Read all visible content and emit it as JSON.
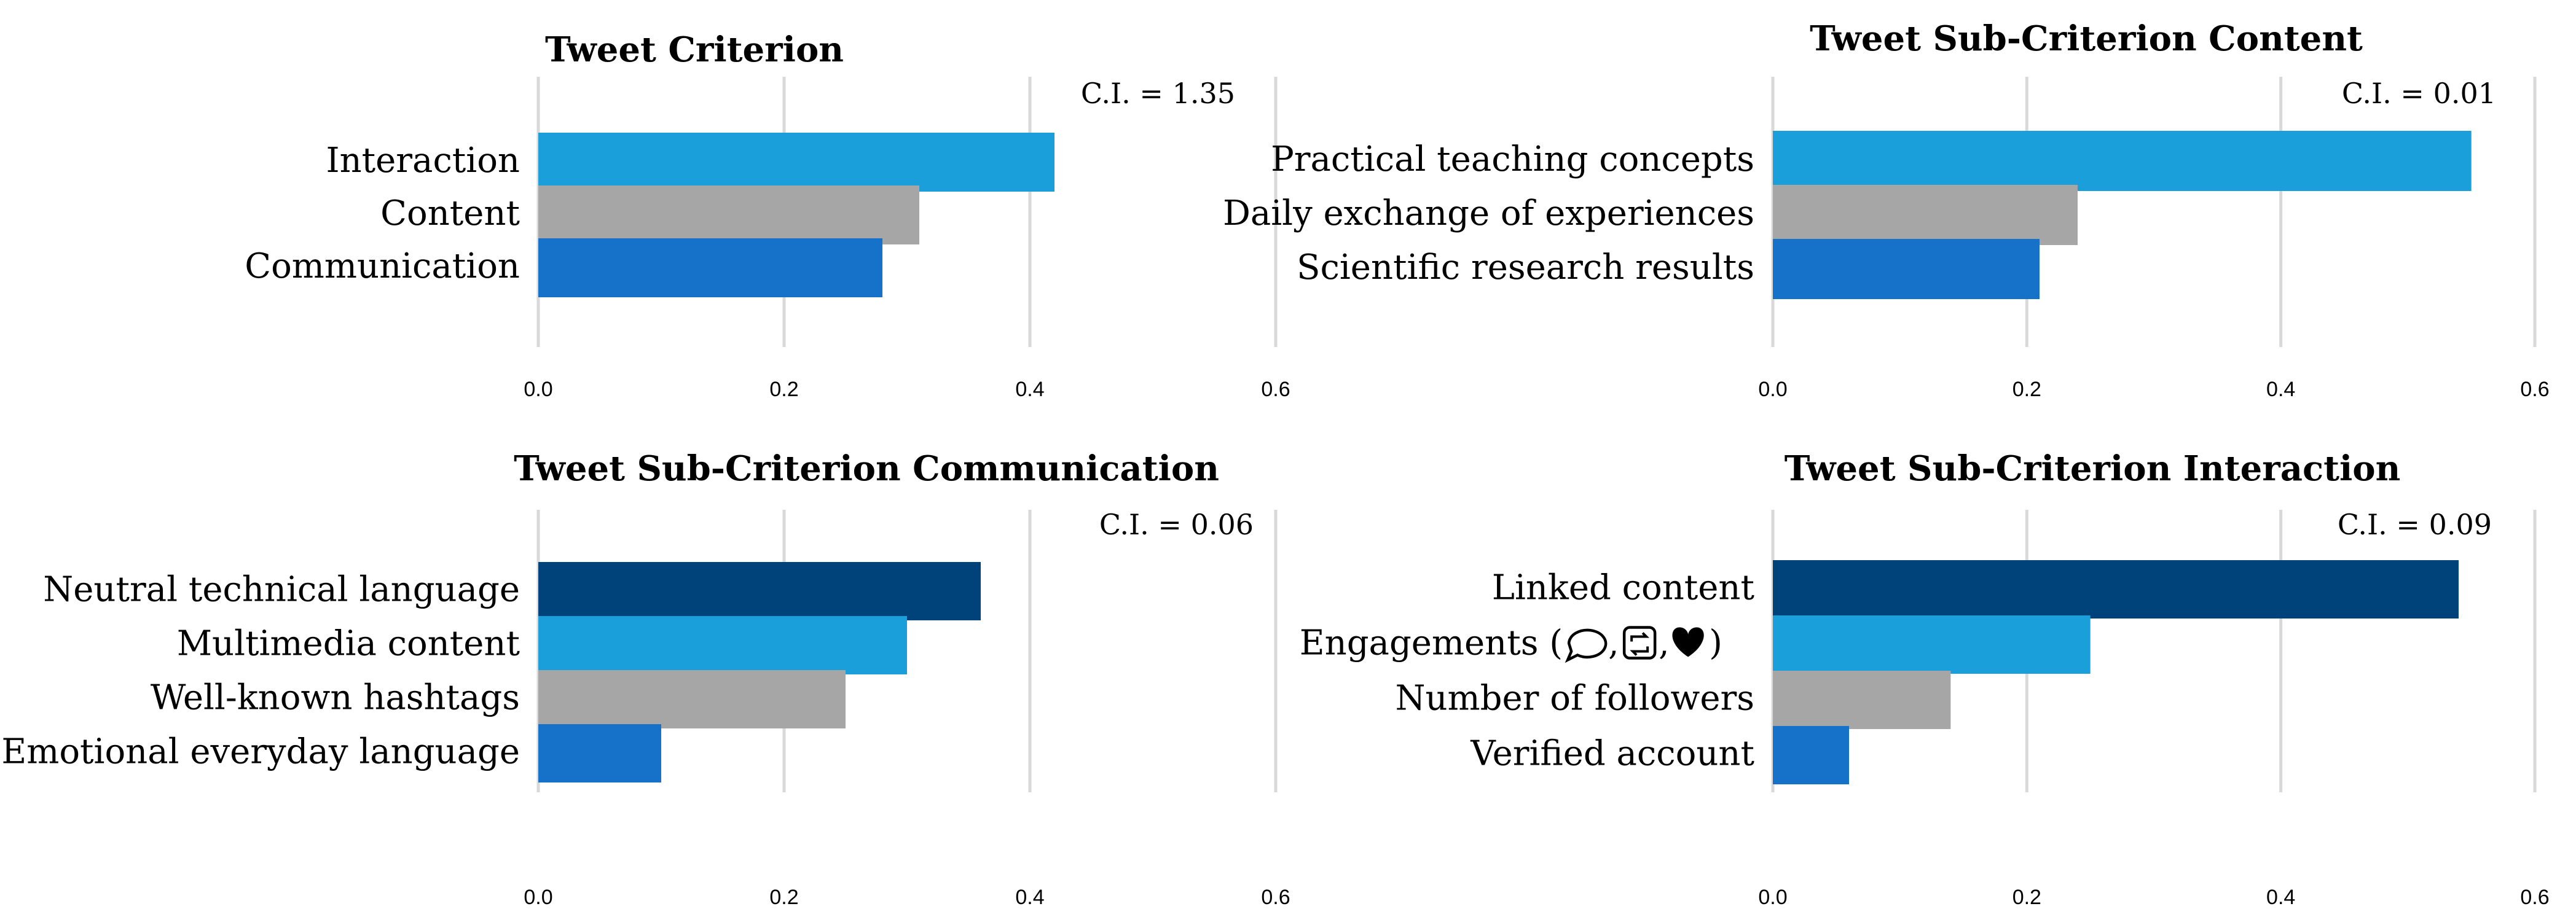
{
  "colors": {
    "dark_navy": "#00427A",
    "light_blue": "#1A9FDB",
    "gray": "#A6A6A6",
    "medium_blue": "#1672C9",
    "gridline": "#D9D9D9",
    "text": "#000000"
  },
  "chart_data": [
    {
      "type": "bar",
      "orientation": "horizontal",
      "title": "Tweet Criterion",
      "annotation": "C.I. = 1.35",
      "categories": [
        "Interaction",
        "Content",
        "Communication"
      ],
      "values": [
        0.42,
        0.31,
        0.28
      ],
      "bar_colors": [
        "#1A9FDB",
        "#A6A6A6",
        "#1672C9"
      ],
      "xlim": [
        0,
        0.6
      ],
      "x_ticks": [
        "0.0",
        "0.2",
        "0.4",
        "0.6"
      ],
      "grid": true
    },
    {
      "type": "bar",
      "orientation": "horizontal",
      "title": "Tweet Sub-Criterion Content",
      "annotation": "C.I. = 0.01",
      "categories": [
        "Practical teaching concepts",
        "Daily exchange of experiences",
        "Scientific research results"
      ],
      "values": [
        0.55,
        0.24,
        0.21
      ],
      "bar_colors": [
        "#1A9FDB",
        "#A6A6A6",
        "#1672C9"
      ],
      "xlim": [
        0,
        0.6
      ],
      "x_ticks": [
        "0.0",
        "0.2",
        "0.4",
        "0.6"
      ],
      "grid": true
    },
    {
      "type": "bar",
      "orientation": "horizontal",
      "title": "Tweet Sub-Criterion Communication",
      "annotation": "C.I. = 0.06",
      "categories": [
        "Neutral technical language",
        "Multimedia content",
        "Well-known hashtags",
        "Emotional everyday language"
      ],
      "values": [
        0.36,
        0.3,
        0.25,
        0.1
      ],
      "bar_colors": [
        "#00427A",
        "#1A9FDB",
        "#A6A6A6",
        "#1672C9"
      ],
      "xlim": [
        0,
        0.6
      ],
      "x_ticks": [
        "0.0",
        "0.2",
        "0.4",
        "0.6"
      ],
      "grid": true
    },
    {
      "type": "bar",
      "orientation": "horizontal",
      "title": "Tweet Sub-Criterion Interaction",
      "annotation": "C.I. = 0.09",
      "categories": [
        "Linked content",
        "Engagements (",
        "Number of followers",
        "Verified account"
      ],
      "category_suffix": {
        "1": ")"
      },
      "values": [
        0.54,
        0.25,
        0.14,
        0.06
      ],
      "bar_colors": [
        "#00427A",
        "#1A9FDB",
        "#A6A6A6",
        "#1672C9"
      ],
      "xlim": [
        0,
        0.6
      ],
      "x_ticks": [
        "0.0",
        "0.2",
        "0.4",
        "0.6"
      ],
      "grid": true
    }
  ]
}
